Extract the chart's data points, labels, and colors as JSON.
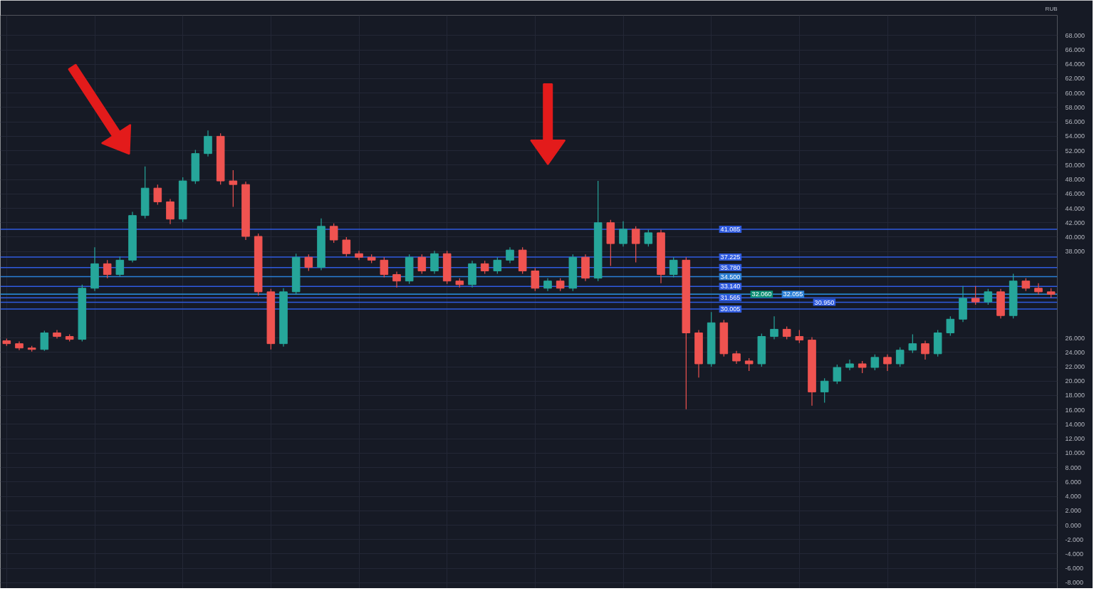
{
  "chart_data": {
    "type": "candlestick",
    "ylabel": "RUB",
    "categories": [
      null,
      null,
      null,
      null,
      null,
      null,
      null,
      null,
      null,
      null,
      null,
      null,
      null,
      null,
      null,
      null,
      null,
      null,
      null,
      null,
      null,
      null,
      null,
      null,
      null,
      null,
      null,
      null,
      null,
      null,
      null,
      null,
      null,
      null,
      null,
      null,
      null,
      null,
      null,
      null,
      null,
      null,
      null,
      null,
      null,
      null,
      null,
      null,
      null,
      null,
      null,
      null,
      null,
      null,
      null,
      null,
      null,
      null,
      null,
      null,
      null,
      null,
      null,
      null,
      null,
      null,
      null,
      null,
      null,
      null,
      null,
      null,
      null,
      null,
      null,
      null,
      null,
      null,
      null,
      null,
      null,
      null,
      null,
      null
    ],
    "ohlc": [
      [
        25.6,
        25.9,
        24.9,
        25.2
      ],
      [
        25.2,
        25.5,
        24.3,
        24.6
      ],
      [
        24.6,
        24.9,
        24.1,
        24.4
      ],
      [
        24.4,
        27.0,
        24.2,
        26.7
      ],
      [
        26.7,
        27.1,
        25.9,
        26.2
      ],
      [
        26.2,
        26.5,
        25.5,
        25.8
      ],
      [
        25.8,
        33.4,
        25.5,
        32.9
      ],
      [
        32.9,
        38.6,
        32.5,
        36.3
      ],
      [
        36.3,
        36.8,
        34.3,
        34.8
      ],
      [
        34.8,
        37.3,
        34.5,
        36.8
      ],
      [
        36.8,
        43.5,
        36.5,
        43.0
      ],
      [
        43.0,
        49.8,
        42.6,
        46.8
      ],
      [
        46.8,
        47.3,
        44.5,
        44.9
      ],
      [
        44.9,
        45.3,
        41.8,
        42.5
      ],
      [
        42.5,
        48.3,
        42.1,
        47.8
      ],
      [
        47.8,
        52.1,
        47.4,
        51.6
      ],
      [
        51.6,
        54.8,
        51.2,
        54.0
      ],
      [
        54.0,
        54.4,
        47.3,
        47.8
      ],
      [
        47.8,
        49.3,
        44.2,
        47.3
      ],
      [
        47.3,
        47.7,
        39.6,
        40.1
      ],
      [
        40.1,
        40.5,
        31.9,
        32.4
      ],
      [
        32.4,
        32.8,
        24.4,
        25.2
      ],
      [
        25.2,
        32.9,
        24.8,
        32.4
      ],
      [
        32.4,
        37.7,
        32.0,
        37.2
      ],
      [
        37.2,
        37.6,
        35.3,
        35.8
      ],
      [
        35.8,
        42.6,
        35.4,
        41.5
      ],
      [
        41.5,
        41.9,
        39.2,
        39.6
      ],
      [
        39.6,
        40.0,
        37.3,
        37.7
      ],
      [
        37.7,
        38.1,
        36.8,
        37.2
      ],
      [
        37.2,
        37.6,
        36.4,
        36.8
      ],
      [
        36.8,
        37.2,
        34.4,
        34.8
      ],
      [
        34.8,
        35.2,
        33.0,
        33.9
      ],
      [
        33.9,
        37.6,
        33.5,
        37.2
      ],
      [
        37.2,
        37.6,
        34.9,
        35.3
      ],
      [
        35.3,
        38.1,
        34.9,
        37.7
      ],
      [
        37.7,
        38.1,
        33.5,
        33.9
      ],
      [
        33.9,
        34.3,
        33.0,
        33.4
      ],
      [
        33.4,
        36.7,
        33.0,
        36.3
      ],
      [
        36.3,
        36.7,
        34.9,
        35.3
      ],
      [
        35.3,
        37.2,
        34.9,
        36.8
      ],
      [
        36.8,
        38.6,
        36.4,
        38.2
      ],
      [
        38.2,
        38.6,
        34.9,
        35.3
      ],
      [
        35.3,
        35.7,
        32.5,
        32.9
      ],
      [
        32.9,
        34.3,
        32.5,
        33.9
      ],
      [
        33.9,
        34.3,
        32.5,
        32.9
      ],
      [
        32.9,
        37.6,
        32.5,
        37.2
      ],
      [
        37.2,
        37.6,
        33.9,
        34.3
      ],
      [
        34.3,
        47.8,
        33.9,
        42.0
      ],
      [
        42.0,
        42.4,
        36.0,
        39.1
      ],
      [
        39.1,
        42.2,
        38.7,
        41.1
      ],
      [
        41.1,
        41.5,
        36.5,
        39.1
      ],
      [
        39.1,
        41.0,
        38.7,
        40.6
      ],
      [
        40.6,
        41.0,
        33.6,
        34.8
      ],
      [
        34.8,
        37.2,
        34.4,
        36.8
      ],
      [
        36.8,
        37.2,
        16.1,
        26.7
      ],
      [
        26.7,
        27.1,
        20.5,
        22.4
      ],
      [
        22.4,
        29.6,
        22.0,
        28.1
      ],
      [
        28.1,
        28.5,
        23.4,
        23.8
      ],
      [
        23.8,
        24.2,
        22.4,
        22.8
      ],
      [
        22.8,
        23.2,
        21.4,
        22.4
      ],
      [
        22.4,
        26.6,
        22.0,
        26.2
      ],
      [
        26.2,
        29.0,
        25.8,
        27.2
      ],
      [
        27.2,
        27.6,
        25.8,
        26.2
      ],
      [
        26.2,
        27.1,
        25.3,
        25.7
      ],
      [
        25.7,
        26.1,
        16.6,
        18.5
      ],
      [
        18.5,
        20.4,
        17.0,
        20.0
      ],
      [
        20.0,
        22.3,
        19.6,
        21.9
      ],
      [
        21.9,
        23.0,
        21.5,
        22.4
      ],
      [
        22.4,
        22.8,
        21.1,
        21.9
      ],
      [
        21.9,
        23.7,
        21.5,
        23.3
      ],
      [
        23.3,
        23.7,
        21.4,
        22.4
      ],
      [
        22.4,
        24.7,
        22.0,
        24.3
      ],
      [
        24.3,
        26.5,
        23.9,
        25.2
      ],
      [
        25.2,
        25.6,
        23.0,
        23.8
      ],
      [
        23.8,
        27.1,
        23.4,
        26.7
      ],
      [
        26.7,
        29.0,
        26.3,
        28.6
      ],
      [
        28.6,
        33.2,
        28.2,
        31.5
      ],
      [
        31.5,
        33.2,
        30.6,
        31.0
      ],
      [
        31.0,
        32.8,
        30.6,
        32.4
      ],
      [
        32.4,
        32.8,
        28.7,
        29.1
      ],
      [
        29.1,
        34.9,
        28.7,
        33.9
      ],
      [
        33.9,
        34.3,
        32.5,
        32.9
      ],
      [
        32.9,
        33.6,
        32.0,
        32.4
      ],
      [
        32.4,
        32.9,
        31.6,
        32.06
      ]
    ],
    "colors": [
      "#ef5350",
      "#ef5350",
      "#ef5350",
      "#26a69a",
      "#ef5350",
      "#ef5350",
      "#26a69a",
      "#26a69a",
      "#ef5350",
      "#26a69a",
      "#26a69a",
      "#26a69a",
      "#ef5350",
      "#ef5350",
      "#26a69a",
      "#26a69a",
      "#26a69a",
      "#ef5350",
      "#ef5350",
      "#ef5350",
      "#ef5350",
      "#ef5350",
      "#26a69a",
      "#26a69a",
      "#ef5350",
      "#26a69a",
      "#ef5350",
      "#ef5350",
      "#ef5350",
      "#ef5350",
      "#ef5350",
      "#ef5350",
      "#26a69a",
      "#ef5350",
      "#26a69a",
      "#ef5350",
      "#ef5350",
      "#26a69a",
      "#ef5350",
      "#26a69a",
      "#26a69a",
      "#ef5350",
      "#ef5350",
      "#26a69a",
      "#ef5350",
      "#26a69a",
      "#ef5350",
      "#26a69a",
      "#ef5350",
      "#26a69a",
      "#ef5350",
      "#26a69a",
      "#ef5350",
      "#26a69a",
      "#ef5350",
      "#ef5350",
      "#26a69a",
      "#ef5350",
      "#ef5350",
      "#ef5350",
      "#26a69a",
      "#26a69a",
      "#ef5350",
      "#ef5350",
      "#ef5350",
      "#26a69a",
      "#26a69a",
      "#26a69a",
      "#ef5350",
      "#26a69a",
      "#ef5350",
      "#26a69a",
      "#26a69a",
      "#ef5350",
      "#26a69a",
      "#26a69a",
      "#26a69a",
      "#ef5350",
      "#26a69a",
      "#ef5350",
      "#26a69a",
      "#ef5350",
      "#ef5350",
      "#ef5350"
    ],
    "ylim": [
      -8.8,
      70.8
    ],
    "yticks": [
      {
        "value": 68,
        "label": "68.000"
      },
      {
        "value": 66,
        "label": "66.000"
      },
      {
        "value": 64,
        "label": "64.000"
      },
      {
        "value": 62,
        "label": "62.000"
      },
      {
        "value": 60,
        "label": "60.000"
      },
      {
        "value": 58,
        "label": "58.000"
      },
      {
        "value": 56,
        "label": "56.000"
      },
      {
        "value": 54,
        "label": "54.000"
      },
      {
        "value": 52,
        "label": "52.000"
      },
      {
        "value": 50,
        "label": "50.000"
      },
      {
        "value": 48,
        "label": "48.000"
      },
      {
        "value": 46,
        "label": "46.000"
      },
      {
        "value": 44,
        "label": "44.000"
      },
      {
        "value": 42,
        "label": "42.000"
      },
      {
        "value": 40,
        "label": "40.000"
      },
      {
        "value": 38,
        "label": "38.000"
      },
      {
        "value": 26,
        "label": "26.000"
      },
      {
        "value": 24,
        "label": "24.000"
      },
      {
        "value": 22,
        "label": "22.000"
      },
      {
        "value": 20,
        "label": "20.000"
      },
      {
        "value": 18,
        "label": "18.000"
      },
      {
        "value": 16,
        "label": "16.000"
      },
      {
        "value": 14,
        "label": "14.000"
      },
      {
        "value": 12,
        "label": "12.000"
      },
      {
        "value": 10,
        "label": "10.000"
      },
      {
        "value": 8,
        "label": "8.000"
      },
      {
        "value": 6,
        "label": "6.000"
      },
      {
        "value": 4,
        "label": "4.000"
      },
      {
        "value": 2,
        "label": "2.000"
      },
      {
        "value": 0,
        "label": "0.000"
      },
      {
        "value": -2,
        "label": "-2.000"
      },
      {
        "value": -4,
        "label": "-4.000"
      },
      {
        "value": -6,
        "label": "-6.000"
      },
      {
        "value": -8,
        "label": "-8.000"
      }
    ],
    "ref_lines": [
      {
        "axis": "y",
        "value": 41.085,
        "label": "41.085",
        "color": "#2f5be0"
      },
      {
        "axis": "y",
        "value": 37.225,
        "label": "37.225",
        "color": "#2f5be0"
      },
      {
        "axis": "y",
        "value": 35.78,
        "label": "35.780",
        "color": "#2f5be0"
      },
      {
        "axis": "y",
        "value": 34.5,
        "label": "34.500",
        "color": "#2a7fd6"
      },
      {
        "axis": "y",
        "value": 33.14,
        "label": "33.140",
        "color": "#2f5be0"
      },
      {
        "axis": "y",
        "value": 32.06,
        "label": "32.060",
        "color": "#0b8f73"
      },
      {
        "axis": "y",
        "value": 32.055,
        "label": "32.055",
        "color": "#2a7fd6"
      },
      {
        "axis": "y",
        "value": 31.565,
        "label": "31.565",
        "color": "#2f5be0"
      },
      {
        "axis": "y",
        "value": 30.95,
        "label": "30.950",
        "color": "#2f5be0"
      },
      {
        "axis": "y",
        "value": 30.005,
        "label": "30.005",
        "color": "#2f5be0"
      }
    ],
    "grid": true
  }
}
